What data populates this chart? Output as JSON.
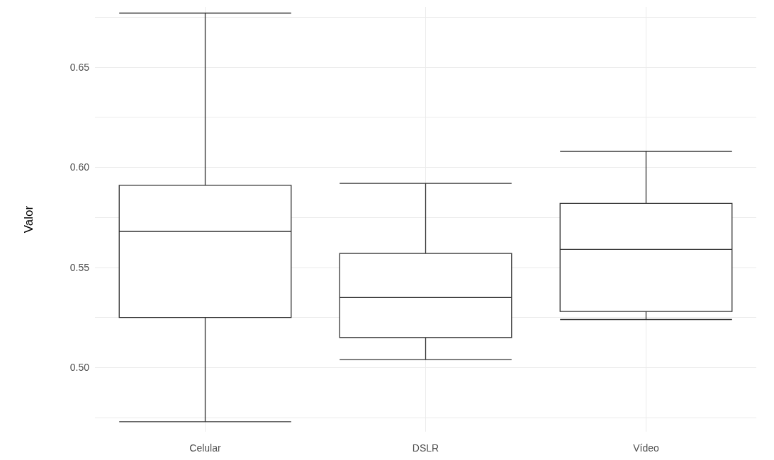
{
  "chart_data": {
    "type": "box",
    "ylabel": "Valor",
    "categories": [
      "Celular",
      "DSLR",
      "Vídeo"
    ],
    "boxes": [
      {
        "low": 0.473,
        "q1": 0.525,
        "median": 0.568,
        "q3": 0.591,
        "high": 0.677
      },
      {
        "low": 0.504,
        "q1": 0.515,
        "median": 0.535,
        "q3": 0.557,
        "high": 0.592
      },
      {
        "low": 0.524,
        "q1": 0.528,
        "median": 0.559,
        "q3": 0.582,
        "high": 0.608
      }
    ],
    "color": "#333333",
    "ylim": [
      0.468,
      0.68
    ],
    "yticks": [
      {
        "value": 0.475,
        "label": null
      },
      {
        "value": 0.5,
        "label": "0.50"
      },
      {
        "value": 0.525,
        "label": null
      },
      {
        "value": 0.55,
        "label": "0.55"
      },
      {
        "value": 0.575,
        "label": null
      },
      {
        "value": 0.6,
        "label": "0.60"
      },
      {
        "value": 0.625,
        "label": null
      },
      {
        "value": 0.65,
        "label": "0.65"
      },
      {
        "value": 0.675,
        "label": null
      }
    ],
    "grid": true
  }
}
